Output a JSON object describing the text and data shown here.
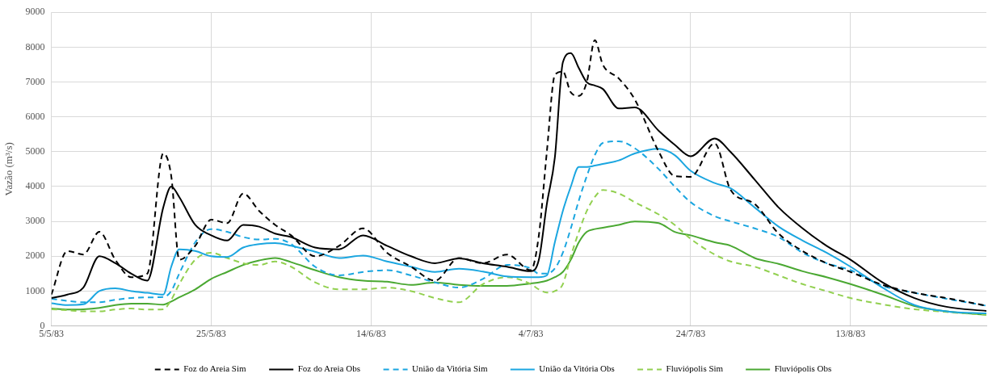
{
  "chart_data": {
    "type": "line",
    "ylabel": "Vazão (m³/s)",
    "x": [
      "1983-05-05",
      "1983-05-07",
      "1983-05-09",
      "1983-05-11",
      "1983-05-13",
      "1983-05-15",
      "1983-05-17",
      "1983-05-19",
      "1983-05-20",
      "1983-05-21",
      "1983-05-23",
      "1983-05-25",
      "1983-05-27",
      "1983-05-29",
      "1983-05-31",
      "1983-06-02",
      "1983-06-04",
      "1983-06-07",
      "1983-06-10",
      "1983-06-13",
      "1983-06-16",
      "1983-06-19",
      "1983-06-22",
      "1983-06-25",
      "1983-06-28",
      "1983-07-01",
      "1983-07-04",
      "1983-07-05",
      "1983-07-06",
      "1983-07-07",
      "1983-07-08",
      "1983-07-09",
      "1983-07-10",
      "1983-07-11",
      "1983-07-12",
      "1983-07-13",
      "1983-07-15",
      "1983-07-17",
      "1983-07-20",
      "1983-07-22",
      "1983-07-24",
      "1983-07-27",
      "1983-07-29",
      "1983-08-01",
      "1983-08-04",
      "1983-08-07",
      "1983-08-10",
      "1983-08-13",
      "1983-08-17",
      "1983-08-21",
      "1983-08-25",
      "1983-08-30"
    ],
    "series": [
      {
        "name": "Foz do Areia Sim",
        "color": "#000000",
        "line_style": "dashed",
        "values": [
          900,
          2150,
          2050,
          2700,
          1900,
          1400,
          1500,
          4950,
          4300,
          1900,
          2300,
          3050,
          2950,
          3800,
          3300,
          2900,
          2600,
          2000,
          2300,
          2800,
          2100,
          1700,
          1300,
          1950,
          1800,
          2050,
          1600,
          2600,
          5000,
          7200,
          7300,
          6700,
          6600,
          7000,
          8200,
          7500,
          7100,
          6500,
          5000,
          4300,
          4280,
          5240,
          3900,
          3500,
          2650,
          2150,
          1800,
          1550,
          1180,
          950,
          800,
          580
        ]
      },
      {
        "name": "Foz do Areia Obs",
        "color": "#000000",
        "line_style": "solid",
        "values": [
          800,
          900,
          1100,
          2000,
          1800,
          1500,
          1300,
          3400,
          4000,
          3700,
          2900,
          2600,
          2450,
          2900,
          2850,
          2650,
          2550,
          2250,
          2200,
          2600,
          2300,
          2000,
          1800,
          1940,
          1800,
          1700,
          1570,
          1900,
          3500,
          4830,
          7560,
          7830,
          7400,
          6990,
          6900,
          6800,
          6240,
          6270,
          5600,
          5200,
          4870,
          5380,
          4990,
          4200,
          3400,
          2800,
          2300,
          1900,
          1250,
          800,
          550,
          430
        ]
      },
      {
        "name": "União da Vitória Sim",
        "color": "#1ba6e0",
        "line_style": "dashed",
        "values": [
          780,
          720,
          680,
          680,
          750,
          800,
          820,
          830,
          1000,
          1500,
          2400,
          2780,
          2700,
          2550,
          2480,
          2500,
          2350,
          1700,
          1450,
          1550,
          1600,
          1450,
          1250,
          1100,
          1350,
          1750,
          1650,
          1500,
          1500,
          1650,
          2100,
          2800,
          3600,
          4300,
          4900,
          5250,
          5300,
          5100,
          4500,
          4000,
          3550,
          3150,
          3000,
          2800,
          2550,
          2100,
          1800,
          1600,
          1150,
          950,
          780,
          580
        ]
      },
      {
        "name": "União da Vitória Obs",
        "color": "#1ba6e0",
        "line_style": "solid",
        "values": [
          650,
          600,
          620,
          1000,
          1080,
          1000,
          950,
          900,
          1700,
          2200,
          2150,
          2000,
          1980,
          2250,
          2350,
          2380,
          2300,
          2130,
          1950,
          2020,
          1850,
          1700,
          1550,
          1640,
          1560,
          1420,
          1400,
          1400,
          1450,
          2400,
          3300,
          4000,
          4560,
          4560,
          4600,
          4650,
          4750,
          4950,
          5080,
          4900,
          4450,
          4100,
          3950,
          3400,
          2850,
          2450,
          2100,
          1700,
          1100,
          600,
          420,
          360
        ]
      },
      {
        "name": "Fluviópolis Sim",
        "color": "#92d050",
        "line_style": "dashed",
        "values": [
          480,
          450,
          420,
          420,
          470,
          500,
          470,
          480,
          750,
          1200,
          1900,
          2100,
          1950,
          1800,
          1750,
          1850,
          1700,
          1250,
          1050,
          1050,
          1100,
          1000,
          800,
          680,
          1200,
          1400,
          1200,
          1050,
          960,
          1000,
          1200,
          2000,
          2700,
          3300,
          3700,
          3900,
          3800,
          3550,
          3200,
          2900,
          2500,
          2050,
          1850,
          1700,
          1450,
          1200,
          1000,
          800,
          620,
          480,
          400,
          320
        ]
      },
      {
        "name": "Fluviópolis Obs",
        "color": "#4aa832",
        "line_style": "solid",
        "values": [
          500,
          470,
          480,
          520,
          600,
          640,
          640,
          610,
          700,
          820,
          1050,
          1350,
          1550,
          1750,
          1880,
          1950,
          1830,
          1600,
          1400,
          1300,
          1270,
          1180,
          1250,
          1180,
          1150,
          1150,
          1220,
          1250,
          1300,
          1400,
          1550,
          1900,
          2400,
          2700,
          2780,
          2820,
          2900,
          3000,
          2950,
          2700,
          2600,
          2400,
          2300,
          1950,
          1780,
          1570,
          1400,
          1200,
          900,
          570,
          420,
          320
        ]
      }
    ],
    "xlim": [
      "1983-05-05",
      "1983-08-30"
    ],
    "xticks": [
      {
        "value": "1983-05-05",
        "label": "5/5/83"
      },
      {
        "value": "1983-05-25",
        "label": "25/5/83"
      },
      {
        "value": "1983-06-14",
        "label": "14/6/83"
      },
      {
        "value": "1983-07-04",
        "label": "4/7/83"
      },
      {
        "value": "1983-07-24",
        "label": "24/7/83"
      },
      {
        "value": "1983-08-13",
        "label": "13/8/83"
      }
    ],
    "ylim": [
      0,
      9000
    ],
    "yticks": [
      0,
      1000,
      2000,
      3000,
      4000,
      5000,
      6000,
      7000,
      8000,
      9000
    ],
    "grid": true,
    "legend": "bottom",
    "marker": "none"
  }
}
